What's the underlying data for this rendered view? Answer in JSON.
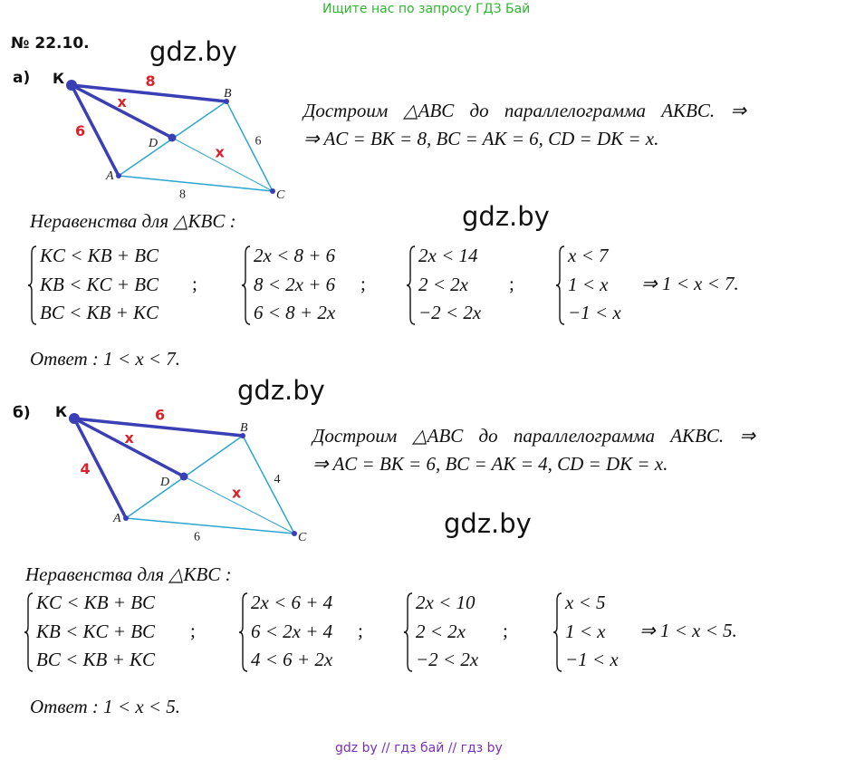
{
  "header_link": "Ищите нас по запросу ГДЗ Бай",
  "problem_number": "№ 22.10.",
  "watermarks": [
    "gdz.by",
    "gdz.by",
    "gdz.by",
    "gdz.by"
  ],
  "parts": [
    {
      "label": "а)",
      "diagram": {
        "K": "К",
        "A": "A",
        "B": "B",
        "C": "C",
        "D": "D",
        "KB": "8",
        "AK": "6",
        "KD": "x",
        "DC": "x",
        "BC": "6",
        "AC": "8"
      },
      "line1": "Достроим △ABC до параллелограмма AKBC. ⇒",
      "line2": "⇒   AC = BK = 8,   BC = AK = 6,   CD = DK = x.",
      "heading": "Неравенства  для   △KBC :",
      "systems": [
        [
          "KC < KB + BC",
          "KB < KC + BC",
          "BC < KB + KC"
        ],
        [
          "2x < 8 + 6",
          "8 < 2x + 6",
          "6 < 8 + 2x"
        ],
        [
          "2x < 14",
          "2 < 2x",
          "−2 < 2x"
        ],
        [
          "x < 7",
          "1 < x",
          "−1 < x"
        ]
      ],
      "separator": ";",
      "conclusion": "⇒   1 < x < 7.",
      "answer": "Ответ :   1 < x < 7."
    },
    {
      "label": "б)",
      "diagram": {
        "K": "К",
        "A": "A",
        "B": "B",
        "C": "C",
        "D": "D",
        "KB": "6",
        "AK": "4",
        "KD": "x",
        "DC": "x",
        "BC": "4",
        "AC": "6"
      },
      "line1": "Достроим △ABC до параллелограмма AKBC. ⇒",
      "line2": "⇒   AC = BK = 6,   BC = AK = 4,   CD = DK = x.",
      "heading": "Неравенства  для   △KBC :",
      "systems": [
        [
          "KC < KB + BC",
          "KB < KC + BC",
          "BC < KB + KC"
        ],
        [
          "2x < 6 + 4",
          "6 < 2x + 4",
          "4 < 6 + 2x"
        ],
        [
          "2x < 10",
          "2 < 2x",
          "−2 < 2x"
        ],
        [
          "x < 5",
          "1 < x",
          "−1 < x"
        ]
      ],
      "separator": ";",
      "conclusion": "⇒   1 < x < 5.",
      "answer": "Ответ :   1 < x < 5."
    }
  ],
  "footer": "gdz by  //  гдз бай  //  гдз by",
  "colors": {
    "thick": "#3a3fb5",
    "thin": "#2aa6cf",
    "red": "#d8232a",
    "header": "#2fb52f",
    "footer": "#7a2fb8"
  }
}
